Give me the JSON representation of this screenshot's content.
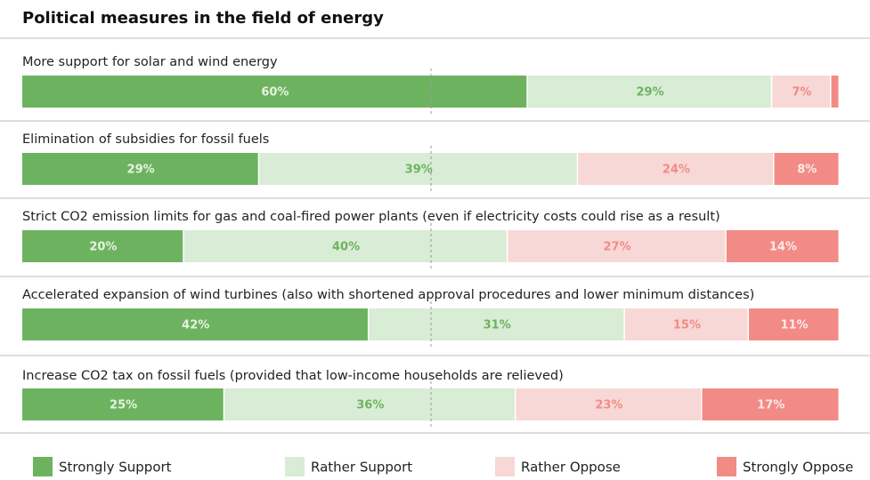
{
  "chart_data": {
    "type": "bar",
    "orientation": "horizontal",
    "stacked": true,
    "title": "Political measures in the field of energy",
    "categories": [
      "More support for solar and wind energy",
      "Elimination of subsidies for fossil fuels",
      "Strict CO2 emission limits for gas and coal-fired power plants (even if electricity costs could rise as a result)",
      "Accelerated expansion of wind turbines (also with shortened approval procedures and lower minimum distances)",
      "Increase CO2 tax on fossil fuels (provided that low-income households are relieved)"
    ],
    "series": [
      {
        "name": "Strongly Support",
        "color": "#6db35f",
        "label_color": "#e6f2e3",
        "values": [
          60,
          29,
          20,
          42,
          25
        ],
        "value_labels": [
          "60%",
          "29%",
          "20%",
          "42%",
          "25%"
        ]
      },
      {
        "name": "Rather Support",
        "color": "#d9ecd5",
        "label_color": "#6db35f",
        "values": [
          29,
          39,
          40,
          31,
          36
        ],
        "value_labels": [
          "29%",
          "39%",
          "40%",
          "31%",
          "36%"
        ]
      },
      {
        "name": "Rather Oppose",
        "color": "#f7d8d6",
        "label_color": "#f28b85",
        "values": [
          7,
          24,
          27,
          15,
          23
        ],
        "value_labels": [
          "7%",
          "24%",
          "27%",
          "15%",
          "23%"
        ]
      },
      {
        "name": "Strongly Oppose",
        "color": "#f28b85",
        "label_color": "#fde9e8",
        "values": [
          1,
          8,
          14,
          11,
          17
        ],
        "value_labels": [
          null,
          "8%",
          "14%",
          "11%",
          "17%"
        ]
      }
    ]
  }
}
